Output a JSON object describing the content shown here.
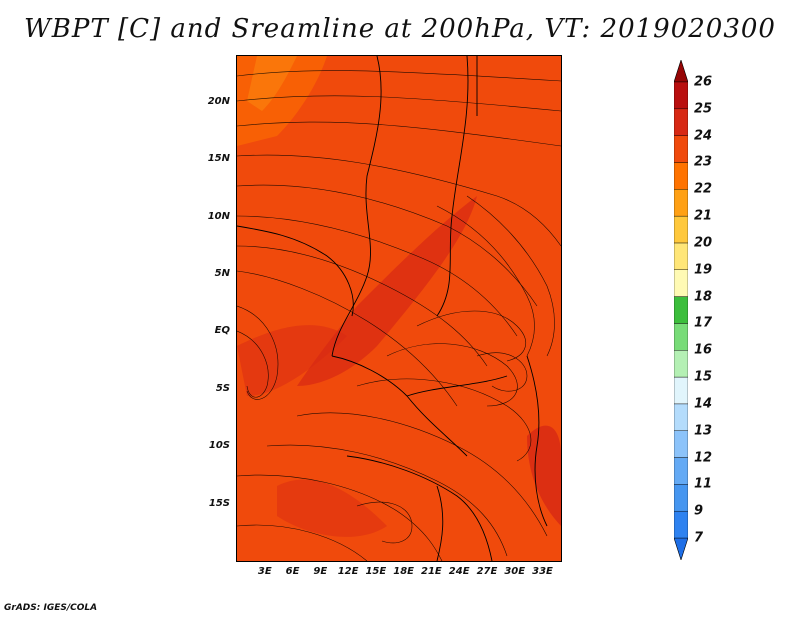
{
  "title": "WBPT [C] and Sreamline at 200hPa, VT: 2019020300",
  "credit": "GrADS: IGES/COLA",
  "map": {
    "lat_range": [
      -20,
      24
    ],
    "lon_range": [
      0,
      35
    ],
    "lat_tick_labels": [
      {
        "value": 20,
        "label": "20N"
      },
      {
        "value": 15,
        "label": "15N"
      },
      {
        "value": 10,
        "label": "10N"
      },
      {
        "value": 5,
        "label": "5N"
      },
      {
        "value": 0,
        "label": "EQ"
      },
      {
        "value": -5,
        "label": "5S"
      },
      {
        "value": -10,
        "label": "10S"
      },
      {
        "value": -15,
        "label": "15S"
      }
    ],
    "lon_tick_labels": [
      {
        "value": 3,
        "label": "3E"
      },
      {
        "value": 6,
        "label": "6E"
      },
      {
        "value": 9,
        "label": "9E"
      },
      {
        "value": 12,
        "label": "12E"
      },
      {
        "value": 15,
        "label": "15E"
      },
      {
        "value": 18,
        "label": "18E"
      },
      {
        "value": 21,
        "label": "21E"
      },
      {
        "value": 24,
        "label": "24E"
      },
      {
        "value": 27,
        "label": "27E"
      },
      {
        "value": 30,
        "label": "30E"
      },
      {
        "value": 33,
        "label": "33E"
      }
    ]
  },
  "colorbar": {
    "levels": [
      "7",
      "9",
      "11",
      "12",
      "13",
      "14",
      "15",
      "16",
      "17",
      "18",
      "19",
      "20",
      "21",
      "22",
      "23",
      "24",
      "25",
      "26"
    ],
    "colors": [
      "#1e6ee6",
      "#2e82f0",
      "#4696f0",
      "#64aaf5",
      "#8cc3fa",
      "#b4dcfc",
      "#e1f5fc",
      "#b4f0b4",
      "#78dc78",
      "#3cbe3c",
      "#fffab4",
      "#ffe678",
      "#ffc83c",
      "#ffa014",
      "#ff7300",
      "#f04a0c",
      "#d72814",
      "#b90f0f",
      "#960505"
    ]
  },
  "colors": {
    "field_base": "#f04a0c",
    "field_dark": "#d72814",
    "field_light": "#ff7300",
    "contour": "#000000"
  }
}
